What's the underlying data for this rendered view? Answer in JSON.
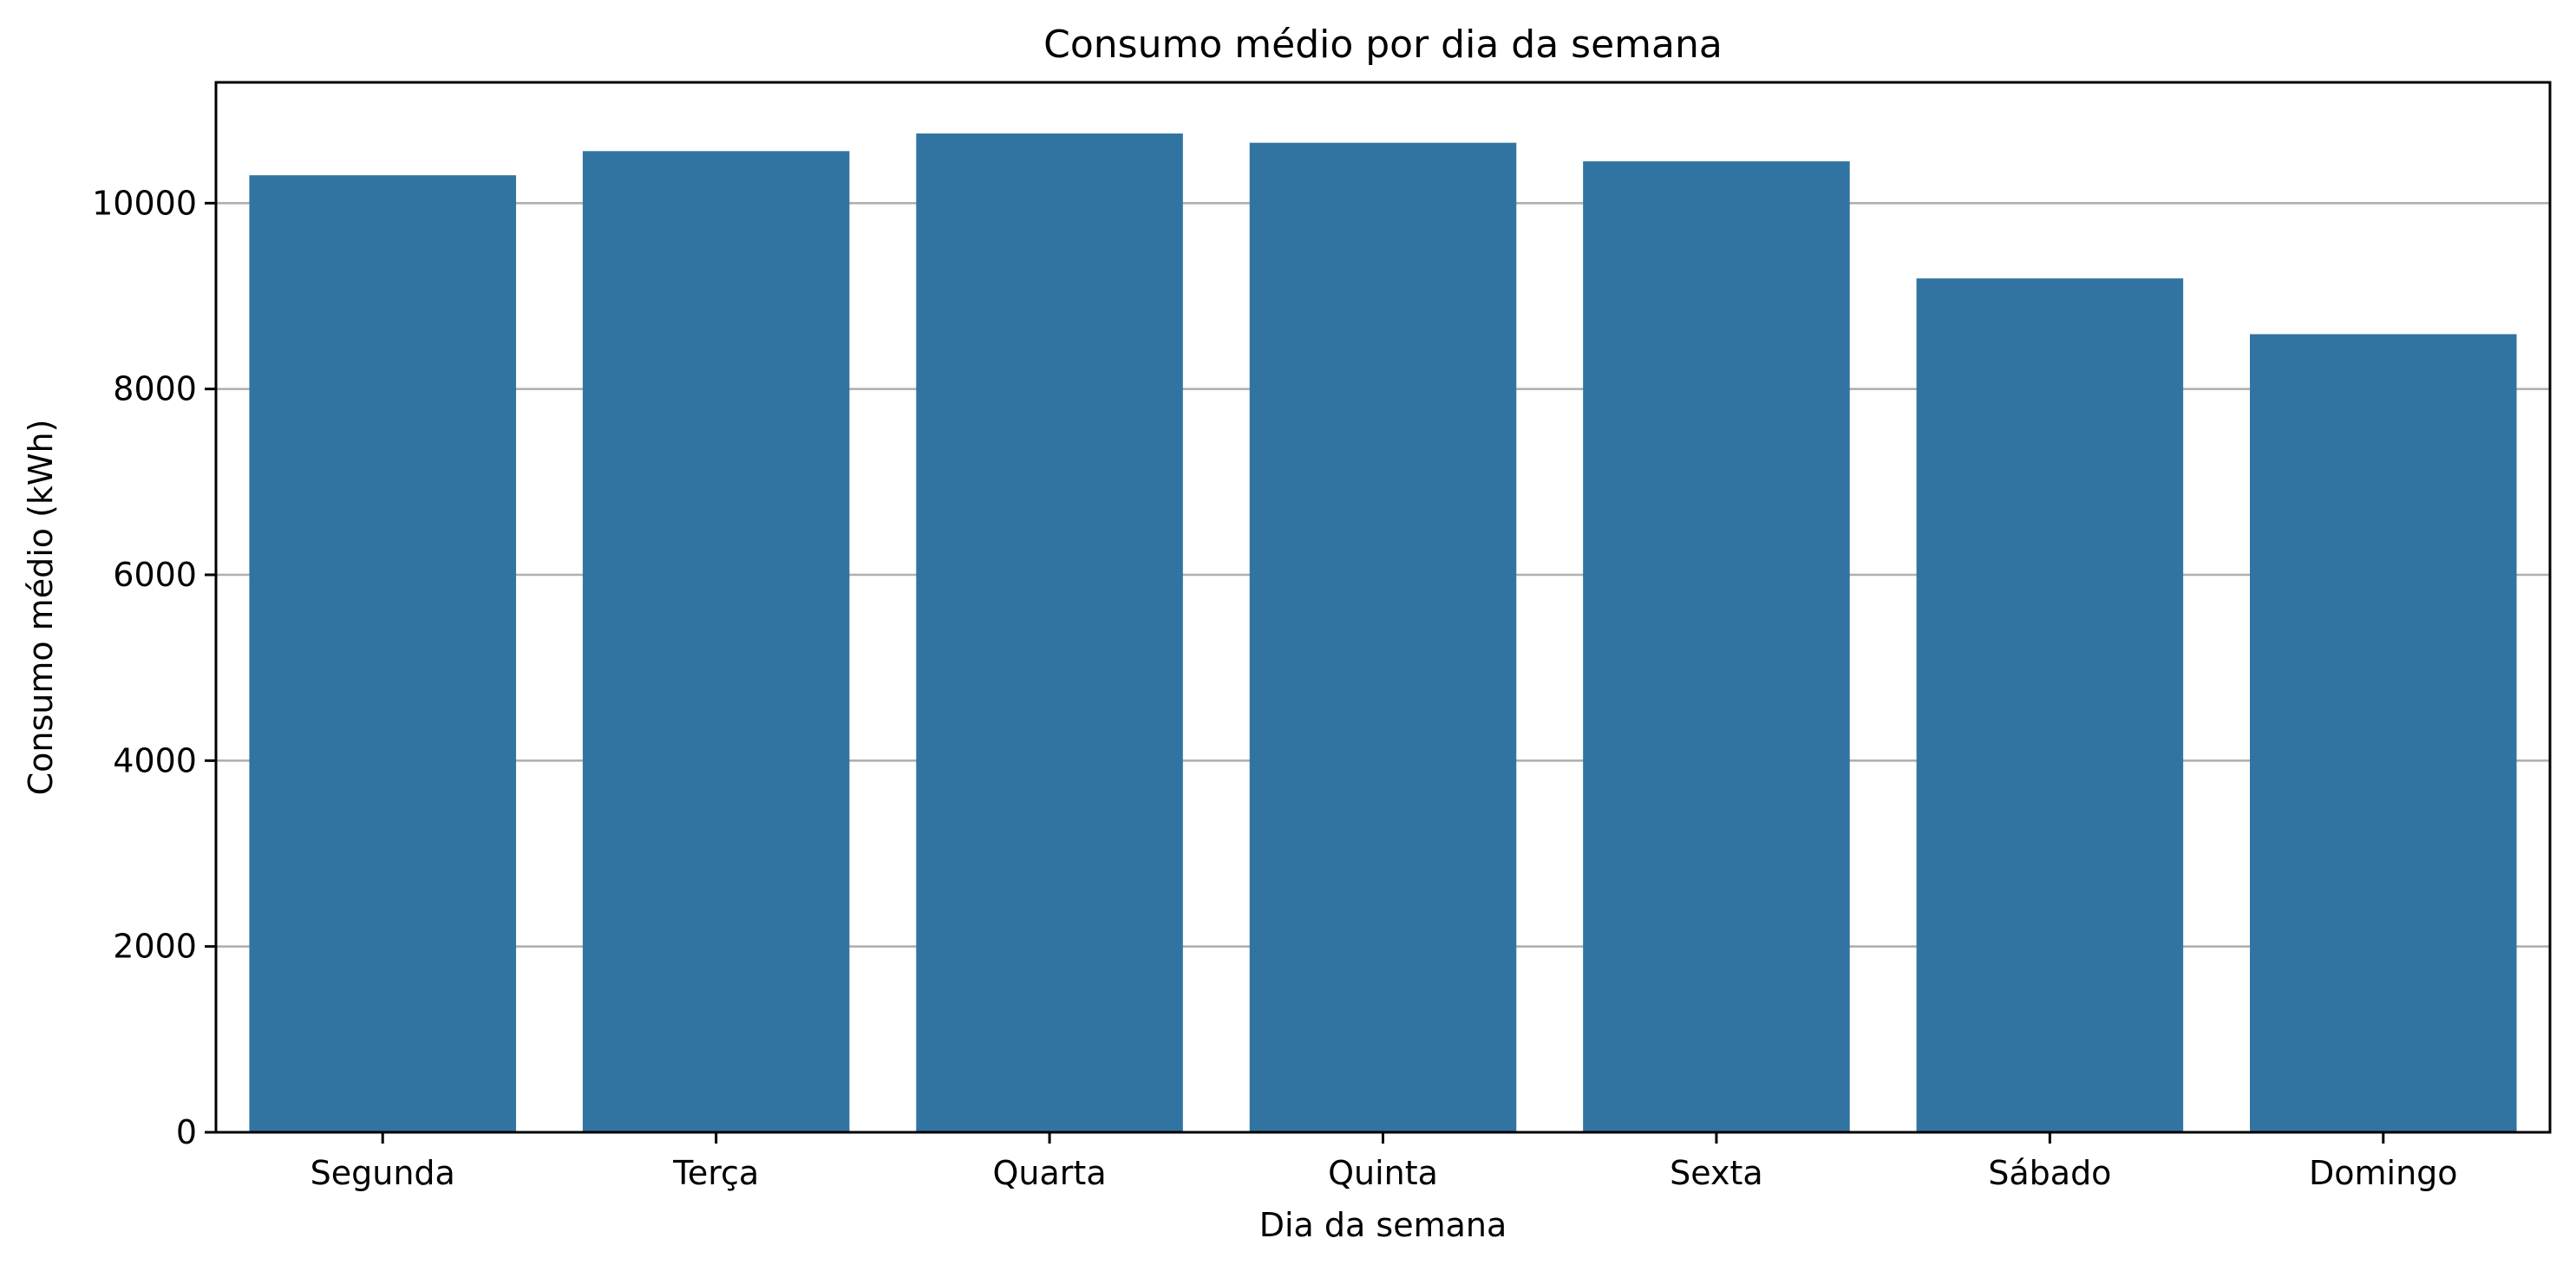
{
  "chart_data": {
    "type": "bar",
    "title": "Consumo médio por dia da semana",
    "xlabel": "Dia da semana",
    "ylabel": "Consumo médio (kWh)",
    "categories": [
      "Segunda",
      "Terça",
      "Quarta",
      "Quinta",
      "Sexta",
      "Sábado",
      "Domingo"
    ],
    "values": [
      10300,
      10560,
      10750,
      10650,
      10450,
      9190,
      8590
    ],
    "ylim": [
      0,
      11300
    ],
    "yticks": [
      0,
      2000,
      4000,
      6000,
      8000,
      10000
    ],
    "ytick_labels": [
      "0",
      "2000",
      "4000",
      "6000",
      "8000",
      "10000"
    ],
    "grid": "y",
    "bar_color": "#3274a1",
    "grid_color": "#b0b0b0"
  }
}
